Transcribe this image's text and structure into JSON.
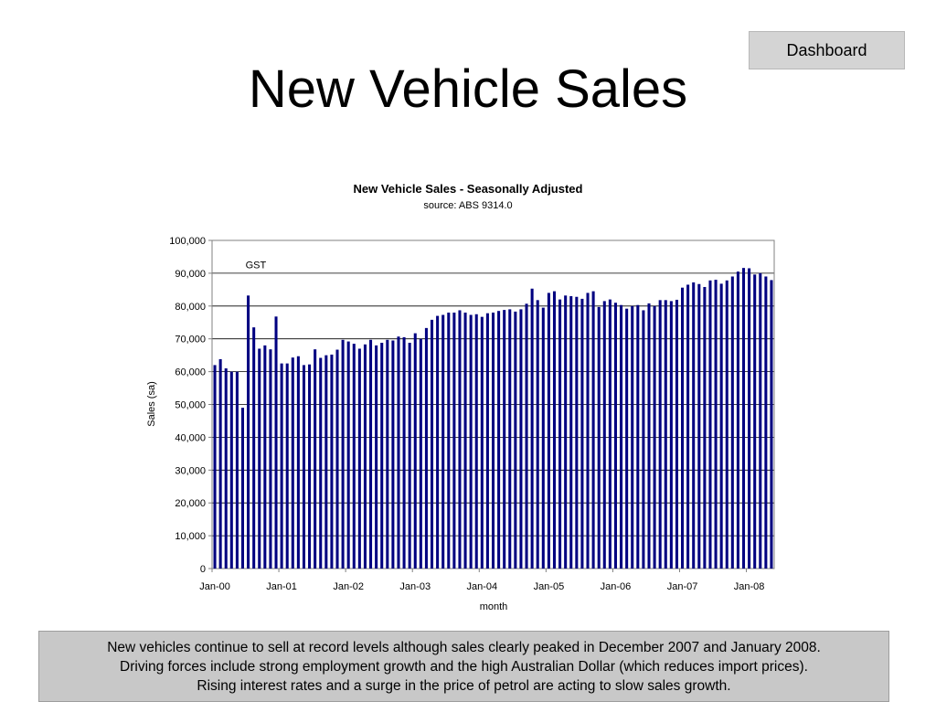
{
  "page": {
    "title": "New Vehicle Sales",
    "dashboard_label": "Dashboard",
    "footer_lines": [
      "New vehicles continue to sell at record levels although sales clearly peaked in December 2007 and January 2008.",
      "Driving forces include strong employment growth and the high Australian Dollar (which reduces import prices).",
      "Rising interest rates and a surge in the price of petrol are acting to slow sales growth."
    ]
  },
  "chart_data": {
    "type": "bar",
    "title": "New Vehicle Sales - Seasonally Adjusted",
    "subtitle": "source: ABS 9314.0",
    "xlabel": "month",
    "ylabel": "Sales (sa)",
    "ylim": [
      0,
      100000
    ],
    "y_ticks": [
      "0",
      "10,000",
      "20,000",
      "30,000",
      "40,000",
      "50,000",
      "60,000",
      "70,000",
      "80,000",
      "90,000",
      "100,000"
    ],
    "x_tick_labels": [
      "Jan-00",
      "Jan-01",
      "Jan-02",
      "Jan-03",
      "Jan-04",
      "Jan-05",
      "Jan-06",
      "Jan-07",
      "Jan-08"
    ],
    "grid": true,
    "bar_color": "#000080",
    "annotation": {
      "text": "GST",
      "month_index": 6
    },
    "values": [
      62000,
      63800,
      61000,
      60000,
      60000,
      49000,
      83200,
      73500,
      67000,
      68000,
      66800,
      76800,
      62500,
      62500,
      64300,
      64700,
      62000,
      62200,
      66800,
      64200,
      65000,
      65200,
      66700,
      69700,
      69200,
      68500,
      67000,
      68300,
      69700,
      68000,
      68800,
      69700,
      69500,
      70700,
      70500,
      68800,
      71700,
      70000,
      73300,
      75800,
      77000,
      77300,
      78000,
      78000,
      78700,
      78000,
      77300,
      77500,
      76700,
      77800,
      78000,
      78500,
      78800,
      79000,
      78300,
      79000,
      80700,
      85300,
      81800,
      79500,
      84000,
      84500,
      82000,
      83200,
      83000,
      82800,
      82200,
      84000,
      84500,
      79700,
      81500,
      82000,
      81000,
      80300,
      79200,
      80000,
      80300,
      78700,
      80800,
      80000,
      81800,
      81800,
      81500,
      81900,
      85600,
      86500,
      87200,
      86700,
      85800,
      87800,
      88000,
      86800,
      87800,
      89000,
      90500,
      91600,
      91500,
      89600,
      90000,
      89000,
      87900
    ]
  }
}
